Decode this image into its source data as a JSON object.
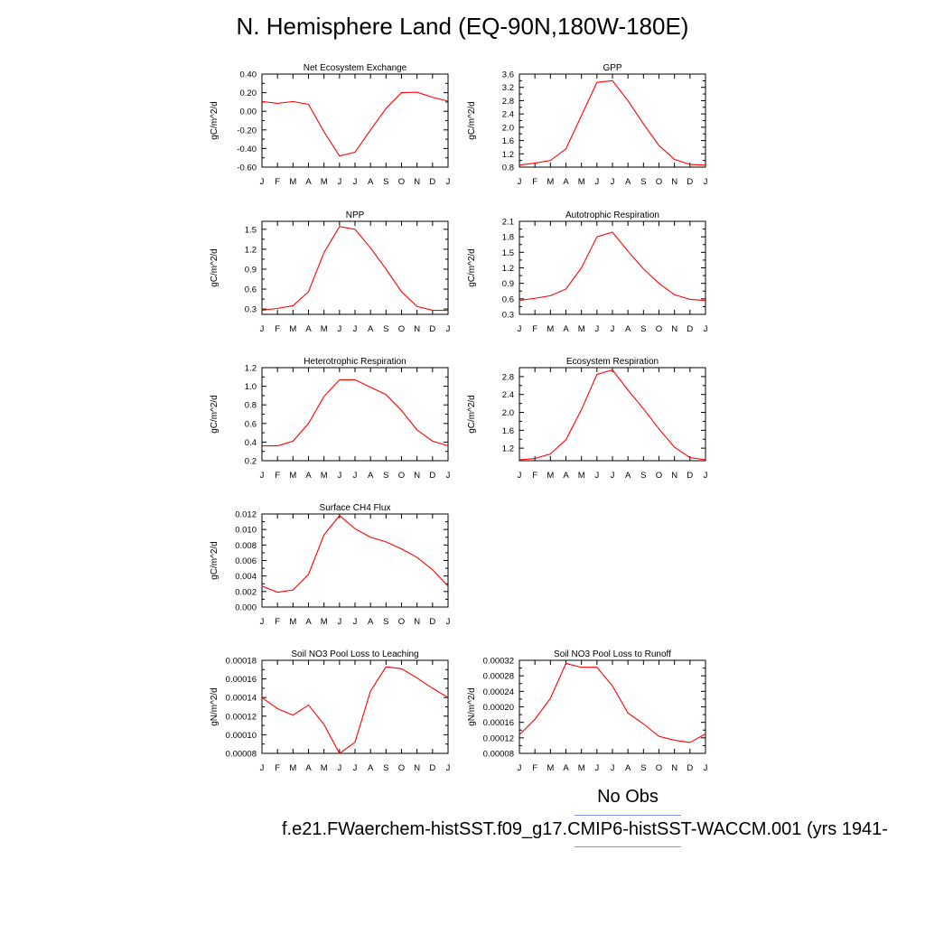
{
  "title": "N. Hemisphere Land (EQ-90N,180W-180E)",
  "legend": {
    "label": "No Obs",
    "line_color": "#7b8ff2",
    "case_color": "#ff7070"
  },
  "case_label": "f.e21.FWaerchem-histSST.f09_g17.CMIP6-histSST-WACCM.001 (yrs 1941-",
  "colors": {
    "line": "#ff0000",
    "axis": "#000000"
  },
  "chart_data": [
    {
      "type": "line",
      "title": "Net Ecosystem Exchange",
      "ylabel": "gC/m^2/d",
      "categories": [
        "J",
        "F",
        "M",
        "A",
        "M",
        "J",
        "J",
        "A",
        "S",
        "O",
        "N",
        "D",
        "J"
      ],
      "values": [
        0.105,
        0.085,
        0.105,
        0.075,
        -0.22,
        -0.48,
        -0.44,
        -0.2,
        0.03,
        0.2,
        0.205,
        0.15,
        0.11
      ],
      "ylim": [
        -0.6,
        0.4
      ],
      "yticks": [
        "-0.60",
        "-0.40",
        "-0.20",
        "0.00",
        "0.20",
        "0.40"
      ]
    },
    {
      "type": "line",
      "title": "GPP",
      "ylabel": "gC/m^2/d",
      "categories": [
        "J",
        "F",
        "M",
        "A",
        "M",
        "J",
        "J",
        "A",
        "S",
        "O",
        "N",
        "D",
        "J"
      ],
      "values": [
        0.86,
        0.92,
        1.0,
        1.35,
        2.35,
        3.35,
        3.4,
        2.8,
        2.1,
        1.45,
        1.03,
        0.88,
        0.86
      ],
      "ylim": [
        0.8,
        3.6
      ],
      "yticks": [
        "0.8",
        "1.2",
        "1.6",
        "2.0",
        "2.4",
        "2.8",
        "3.2",
        "3.6"
      ]
    },
    {
      "type": "line",
      "title": "NPP",
      "ylabel": "gC/m^2/d",
      "categories": [
        "J",
        "F",
        "M",
        "A",
        "M",
        "J",
        "J",
        "A",
        "S",
        "O",
        "N",
        "D",
        "J"
      ],
      "values": [
        0.28,
        0.31,
        0.35,
        0.56,
        1.15,
        1.54,
        1.5,
        1.22,
        0.9,
        0.56,
        0.34,
        0.28,
        0.28
      ],
      "ylim": [
        0.22,
        1.62
      ],
      "yticks": [
        "0.3",
        "0.6",
        "0.9",
        "1.2",
        "1.5"
      ]
    },
    {
      "type": "line",
      "title": "Autotrophic Respiration",
      "ylabel": "gC/m^2/d",
      "categories": [
        "J",
        "F",
        "M",
        "A",
        "M",
        "J",
        "J",
        "A",
        "S",
        "O",
        "N",
        "D",
        "J"
      ],
      "values": [
        0.57,
        0.61,
        0.66,
        0.79,
        1.2,
        1.8,
        1.89,
        1.52,
        1.18,
        0.9,
        0.68,
        0.59,
        0.57
      ],
      "ylim": [
        0.3,
        2.1
      ],
      "yticks": [
        "0.3",
        "0.6",
        "0.9",
        "1.2",
        "1.5",
        "1.8",
        "2.1"
      ]
    },
    {
      "type": "line",
      "title": "Heterotrophic Respiration",
      "ylabel": "gC/m^2/d",
      "categories": [
        "J",
        "F",
        "M",
        "A",
        "M",
        "J",
        "J",
        "A",
        "S",
        "O",
        "N",
        "D",
        "J"
      ],
      "values": [
        0.36,
        0.36,
        0.41,
        0.6,
        0.89,
        1.07,
        1.07,
        0.99,
        0.91,
        0.74,
        0.53,
        0.41,
        0.36
      ],
      "ylim": [
        0.2,
        1.2
      ],
      "yticks": [
        "0.2",
        "0.4",
        "0.6",
        "0.8",
        "1.0",
        "1.2"
      ]
    },
    {
      "type": "line",
      "title": "Ecosystem Respiration",
      "ylabel": "gC/m^2/d",
      "categories": [
        "J",
        "F",
        "M",
        "A",
        "M",
        "J",
        "J",
        "A",
        "S",
        "O",
        "N",
        "D",
        "J"
      ],
      "values": [
        0.94,
        0.97,
        1.07,
        1.39,
        2.06,
        2.85,
        2.95,
        2.5,
        2.08,
        1.63,
        1.22,
        0.99,
        0.94
      ],
      "ylim": [
        0.92,
        3.0
      ],
      "yticks": [
        "1.2",
        "1.6",
        "2.0",
        "2.4",
        "2.8"
      ]
    },
    {
      "type": "line",
      "title": "Surface CH4 Flux",
      "ylabel": "gC/m^2/d",
      "categories": [
        "J",
        "F",
        "M",
        "A",
        "M",
        "J",
        "J",
        "A",
        "S",
        "O",
        "N",
        "D",
        "J"
      ],
      "values": [
        0.0027,
        0.0019,
        0.0022,
        0.0042,
        0.0093,
        0.0118,
        0.0101,
        0.009,
        0.0084,
        0.0075,
        0.0064,
        0.0048,
        0.0027
      ],
      "ylim": [
        0.0,
        0.012
      ],
      "yticks": [
        "0.000",
        "0.002",
        "0.004",
        "0.006",
        "0.008",
        "0.010",
        "0.012"
      ]
    },
    {
      "type": "line",
      "title": "Soil NO3 Pool Loss to Leaching",
      "ylabel": "gN/m^2/d",
      "categories": [
        "J",
        "F",
        "M",
        "A",
        "M",
        "J",
        "J",
        "A",
        "S",
        "O",
        "N",
        "D",
        "J"
      ],
      "values": [
        0.00014,
        0.000128,
        0.000121,
        0.000132,
        0.000111,
        8e-05,
        9.2e-05,
        0.000147,
        0.000173,
        0.000171,
        0.000161,
        0.00015,
        0.00014
      ],
      "ylim": [
        8e-05,
        0.00018
      ],
      "yticks": [
        "0.00008",
        "0.00010",
        "0.00012",
        "0.00014",
        "0.00016",
        "0.00018"
      ]
    },
    {
      "type": "line",
      "title": "Soil NO3 Pool Loss to Runoff",
      "ylabel": "gN/m^2/d",
      "categories": [
        "J",
        "F",
        "M",
        "A",
        "M",
        "J",
        "J",
        "A",
        "S",
        "O",
        "N",
        "D",
        "J"
      ],
      "values": [
        0.000128,
        0.000168,
        0.000222,
        0.000312,
        0.000302,
        0.000302,
        0.000254,
        0.000184,
        0.000156,
        0.000124,
        0.000114,
        0.000108,
        0.00013
      ],
      "ylim": [
        8e-05,
        0.00032
      ],
      "yticks": [
        "0.00008",
        "0.00012",
        "0.00016",
        "0.00020",
        "0.00024",
        "0.00028",
        "0.00032"
      ]
    }
  ]
}
